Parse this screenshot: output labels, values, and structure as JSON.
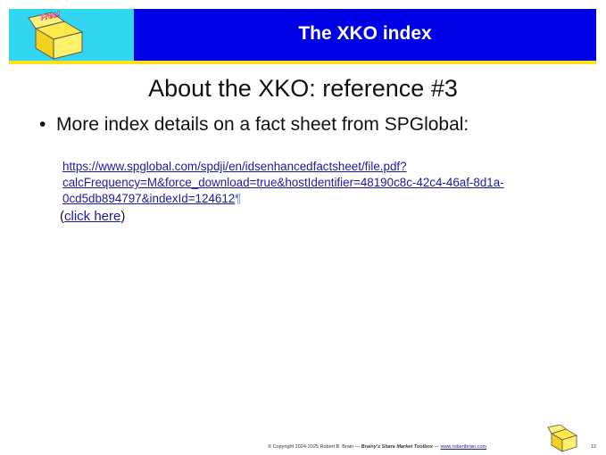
{
  "header": {
    "title": "The XKO index",
    "badge": "Free!"
  },
  "slide": {
    "title": "About the XKO: reference #3",
    "bullet": "More index details on a fact sheet from SPGlobal:",
    "link_lines": [
      "https://www.spglobal.com/spdji/en/idsenhancedfactsheet/file.pdf?",
      "calcFrequency=M&force_download=true&hostIdentifier=48190c8c-42c4-46af-8d1a-",
      "0cd5db894797&indexId=124612"
    ],
    "pilcrow": "¶",
    "click": {
      "open": "(",
      "link": "click here",
      "close": ")"
    }
  },
  "footer": {
    "copyright": "© Copyright 2024-2025 Robert B. Brain — ",
    "brand": "Brainy's Share Market Toolbox",
    "sep": " — ",
    "site": "www.robertbrain.com",
    "page": "12"
  }
}
